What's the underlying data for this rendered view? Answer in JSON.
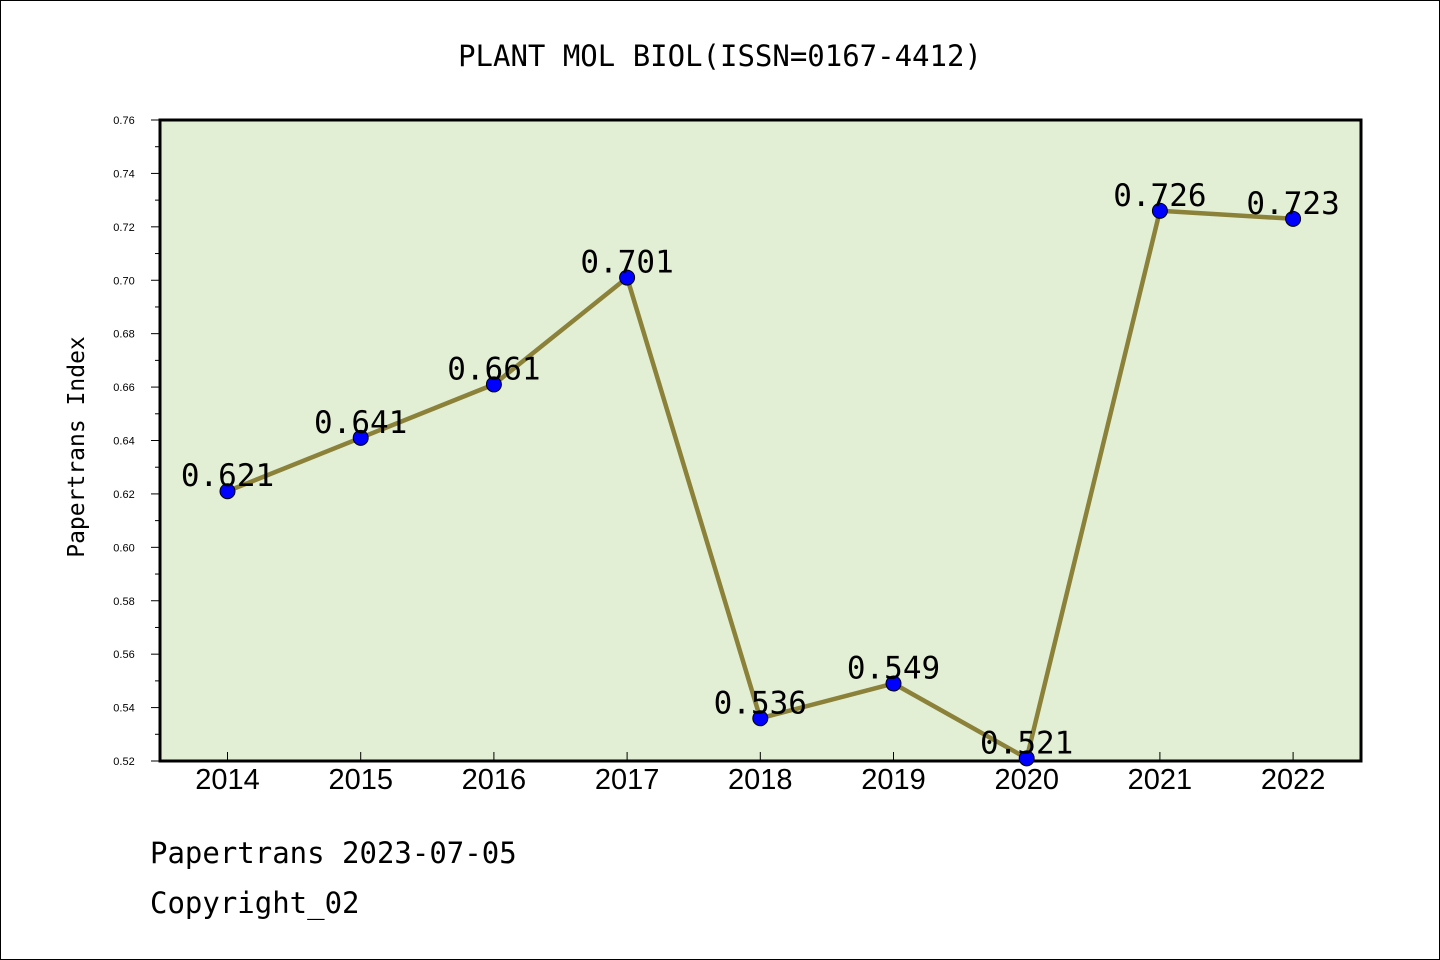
{
  "chart_data": {
    "type": "line",
    "title": "PLANT MOL BIOL(ISSN=0167-4412)",
    "ylabel": "Papertrans Index",
    "xlabel": "",
    "categories": [
      "2014",
      "2015",
      "2016",
      "2017",
      "2018",
      "2019",
      "2020",
      "2021",
      "2022"
    ],
    "values": [
      0.621,
      0.641,
      0.661,
      0.701,
      0.536,
      0.549,
      0.521,
      0.726,
      0.723
    ],
    "data_labels": [
      "0.621",
      "0.641",
      "0.661",
      "0.701",
      "0.536",
      "0.549",
      "0.521",
      "0.726",
      "0.723"
    ],
    "ylim": [
      0.52,
      0.76
    ],
    "yticks": [
      "0.52",
      "0.54",
      "0.56",
      "0.58",
      "0.60",
      "0.62",
      "0.64",
      "0.66",
      "0.68",
      "0.70",
      "0.72",
      "0.74",
      "0.76"
    ],
    "grid": false,
    "colors": {
      "plot_bg": "#e2efd5",
      "line": "#8b8139",
      "marker": "#0000ff"
    }
  },
  "footer": {
    "date_line": "Papertrans 2023-07-05",
    "copyright": "Copyright_02"
  }
}
